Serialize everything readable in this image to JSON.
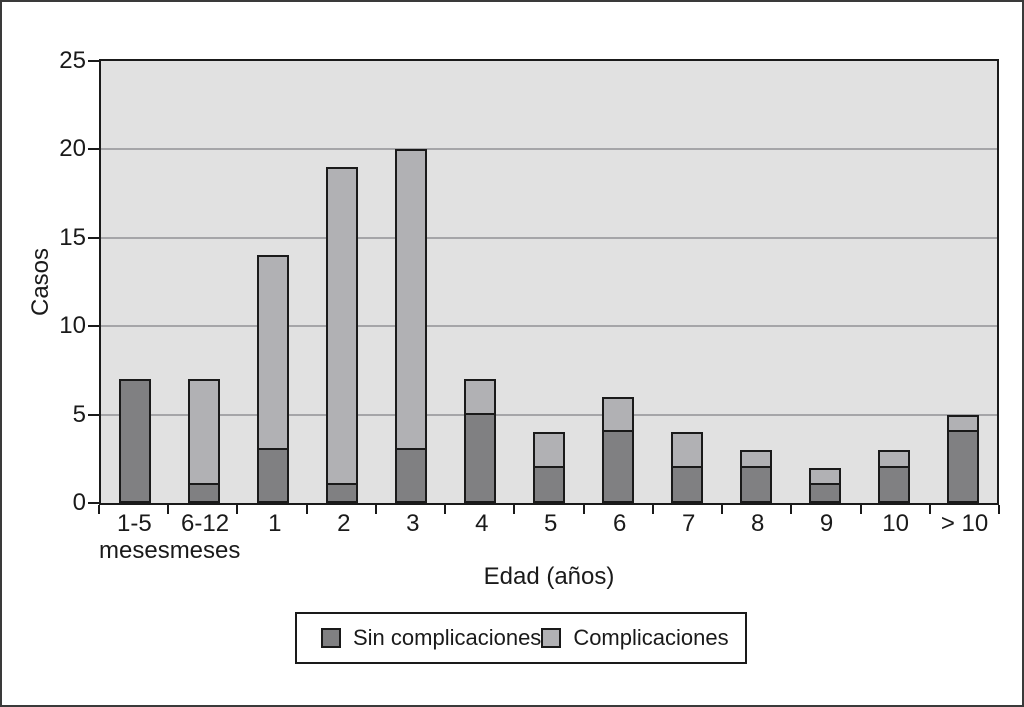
{
  "chart_data": {
    "type": "bar",
    "stacked": true,
    "xlabel": "Edad (años)",
    "ylabel": "Casos",
    "ylim": [
      0,
      25
    ],
    "yticks": [
      0,
      5,
      10,
      15,
      20,
      25
    ],
    "grid": "horizontal",
    "legend_position": "bottom-center",
    "categories": [
      "1-5 meses",
      "6-12 meses",
      "1",
      "2",
      "3",
      "4",
      "5",
      "6",
      "7",
      "8",
      "9",
      "10",
      "> 10"
    ],
    "category_label_lines": [
      [
        "1-5",
        "meses"
      ],
      [
        "6-12",
        "meses"
      ],
      [
        "1"
      ],
      [
        "2"
      ],
      [
        "3"
      ],
      [
        "4"
      ],
      [
        "5"
      ],
      [
        "6"
      ],
      [
        "7"
      ],
      [
        "8"
      ],
      [
        "9"
      ],
      [
        "10"
      ],
      [
        "> 10"
      ]
    ],
    "series": [
      {
        "name": "Sin complicaciones",
        "color": "#808082",
        "values": [
          7,
          1,
          3,
          1,
          3,
          5,
          2,
          4,
          2,
          2,
          1,
          2,
          4
        ]
      },
      {
        "name": "Complicaciones",
        "color": "#b1b1b4",
        "values": [
          0,
          6,
          11,
          18,
          17,
          2,
          2,
          2,
          2,
          1,
          1,
          1,
          1
        ]
      }
    ],
    "stack_totals": [
      7,
      7,
      14,
      19,
      20,
      7,
      4,
      6,
      4,
      3,
      2,
      3,
      5
    ],
    "colors": {
      "plot_background": "#e1e1e1",
      "gridline": "#a5a5a8",
      "axis": "#1a1a1a",
      "bar_border": "#1a1a1a",
      "figure_background": "#ffffff"
    }
  }
}
